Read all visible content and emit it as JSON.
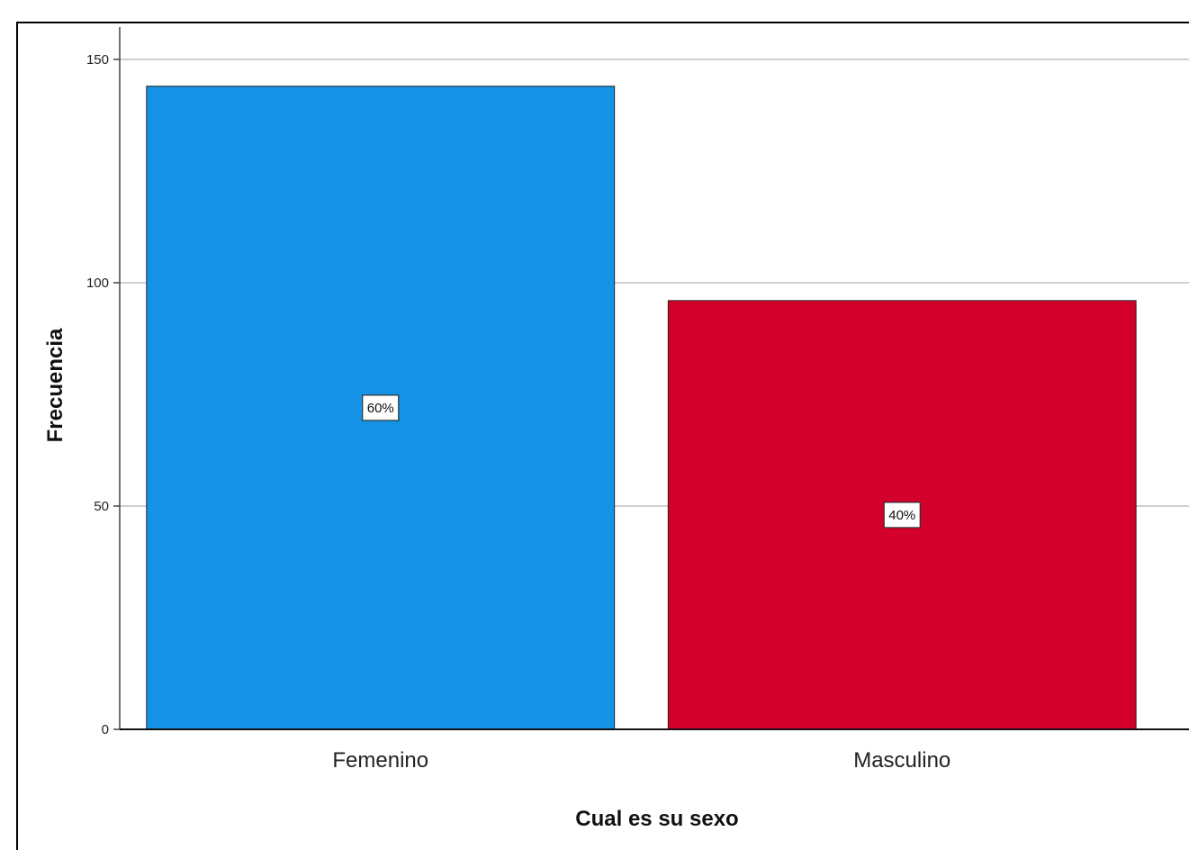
{
  "chart_data": {
    "type": "bar",
    "categories": [
      "Femenino",
      "Masculino"
    ],
    "values": [
      144,
      96
    ],
    "data_labels": [
      "60%",
      "40%"
    ],
    "colors": [
      "#1591e6",
      "#d4002c"
    ],
    "xlabel": "Cual es su sexo",
    "ylabel": "Frecuencia",
    "ylim": [
      0,
      150
    ],
    "yticks": [
      0,
      50,
      100,
      150
    ],
    "grid": true
  }
}
